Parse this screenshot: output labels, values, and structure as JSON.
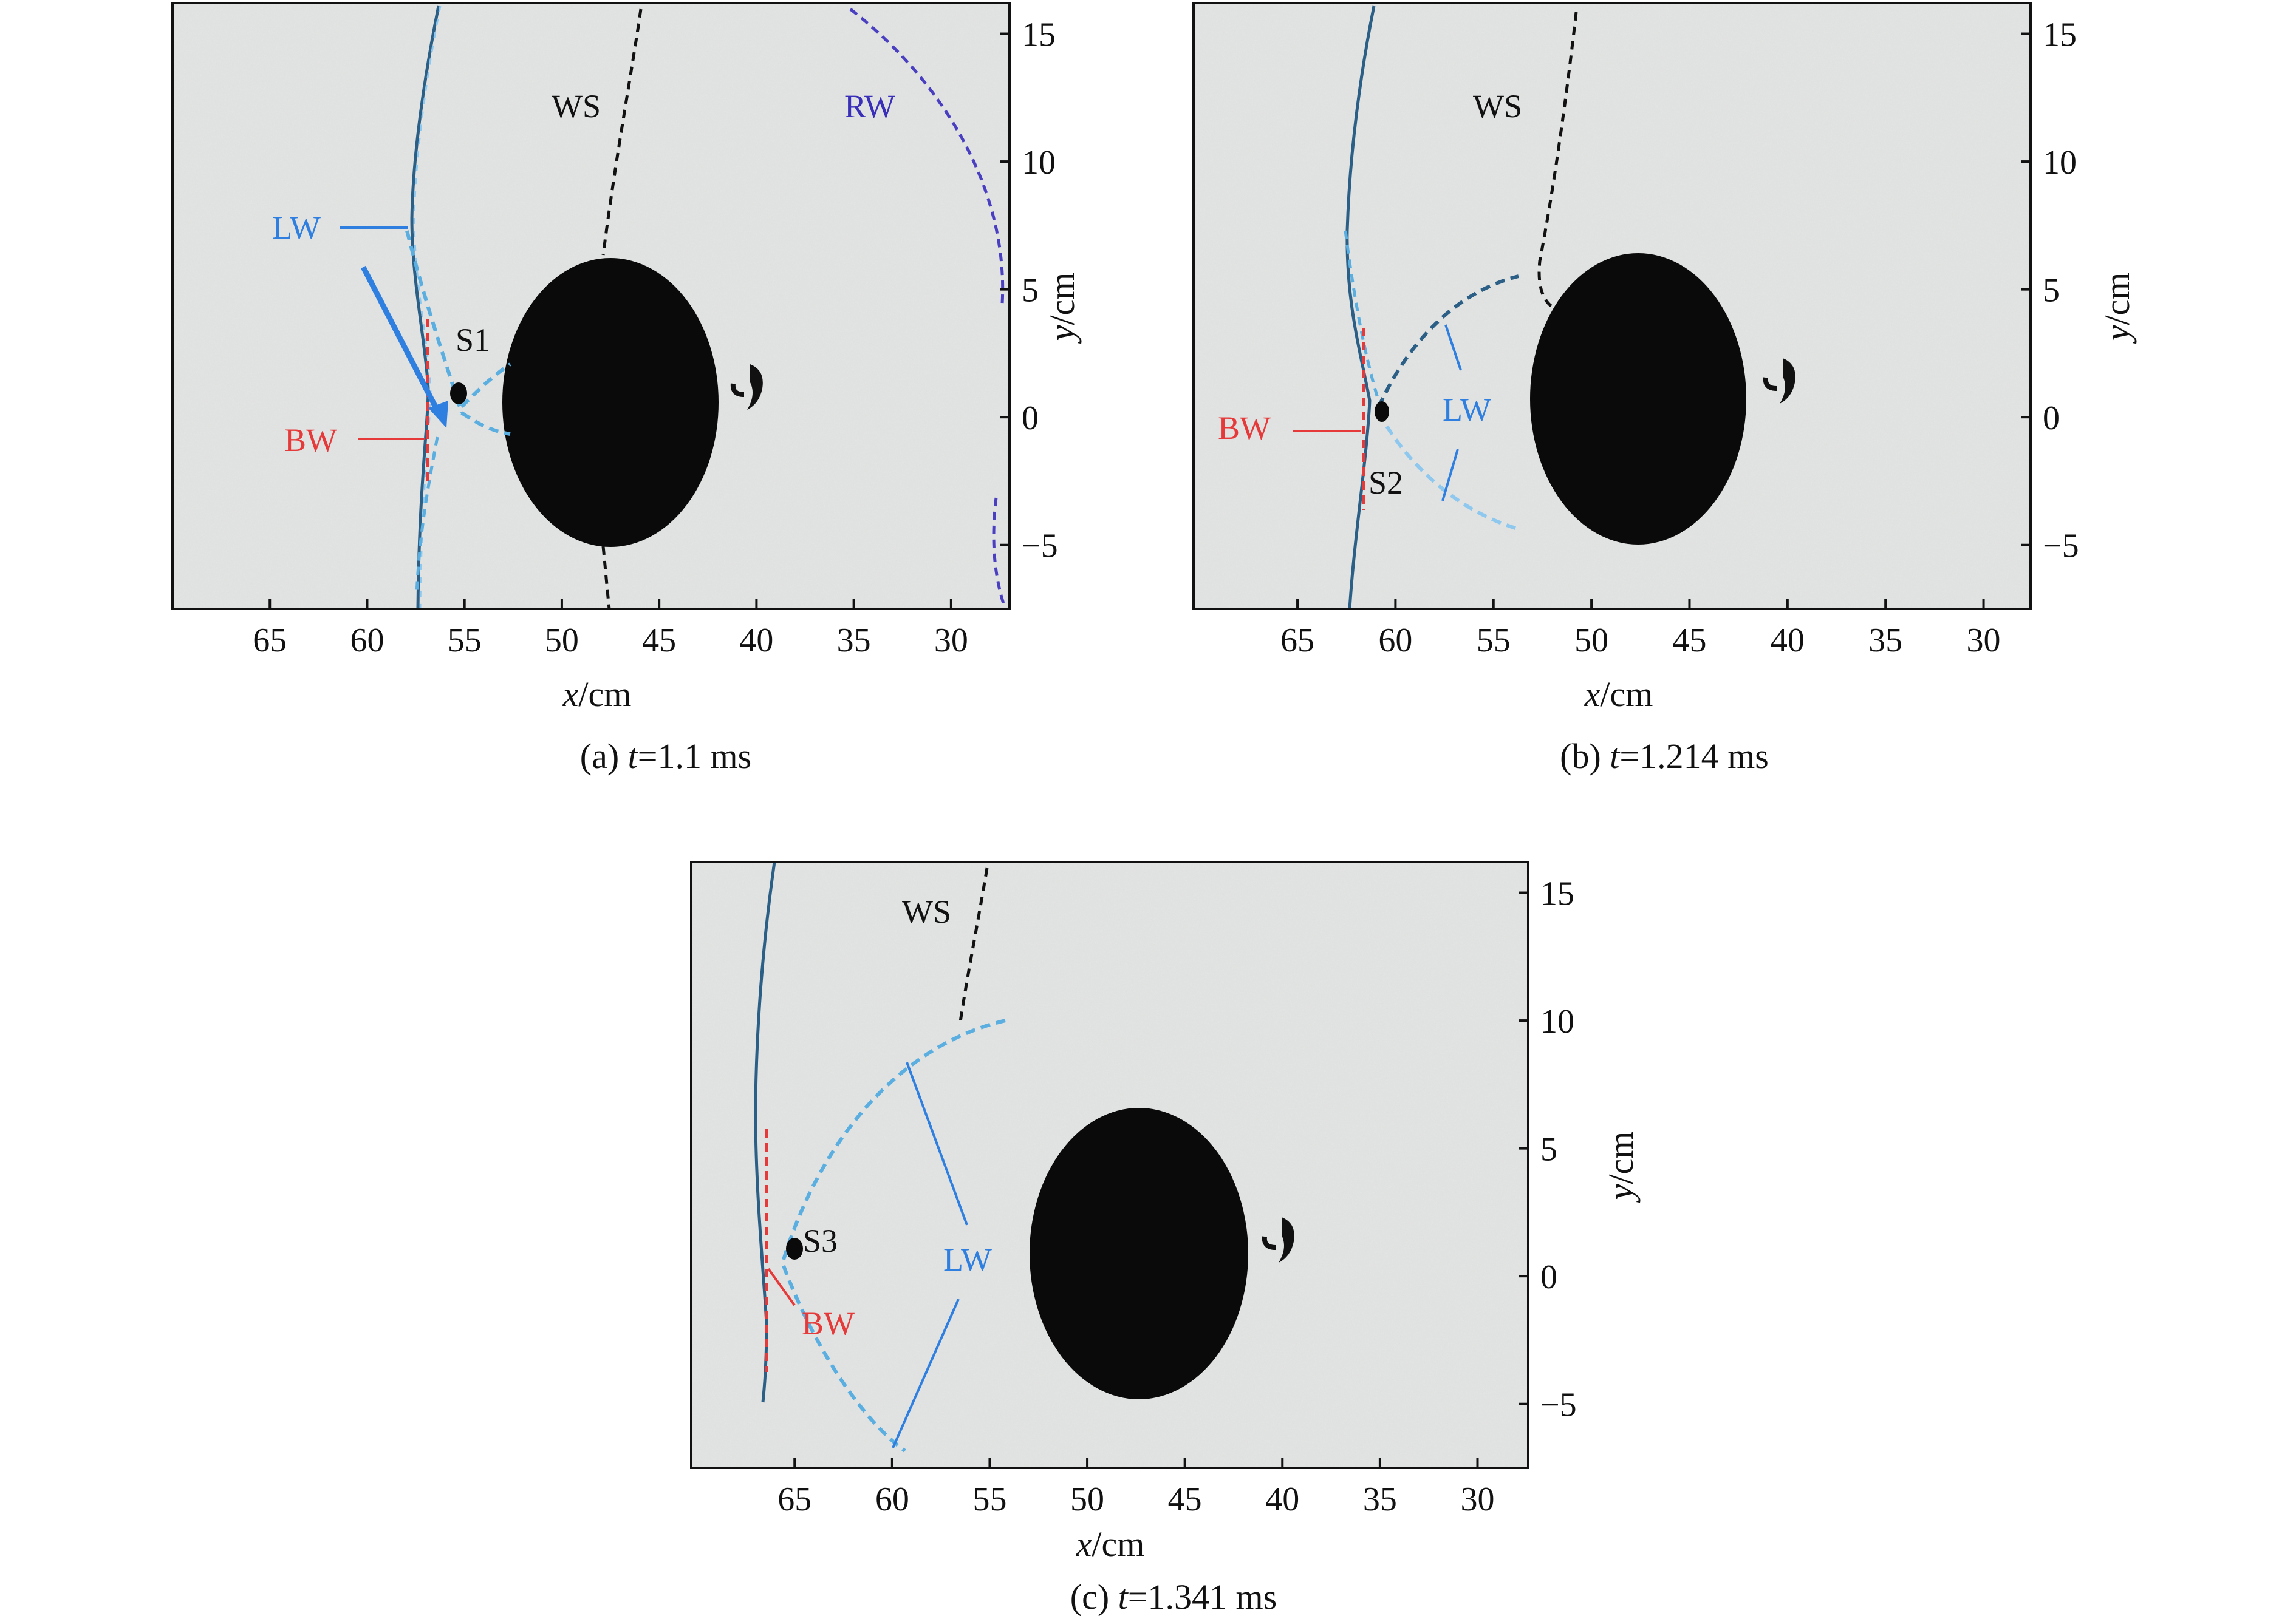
{
  "figure": {
    "panels": [
      {
        "id": "a",
        "caption_prefix": "(a) ",
        "caption_var": "t",
        "caption_value": "=1.1 ms",
        "xlabel_var": "x",
        "xlabel_unit": "/cm",
        "ylabel_var": "y",
        "ylabel_unit": "/cm",
        "x_ticks": [
          65,
          60,
          55,
          50,
          45,
          40,
          35,
          30
        ],
        "y_ticks": [
          15,
          10,
          5,
          0,
          -5
        ],
        "annotations": [
          {
            "text": "WS",
            "color": "#111111"
          },
          {
            "text": "RW",
            "color": "#3a2fb8"
          },
          {
            "text": "LW",
            "color": "#2f7fe0"
          },
          {
            "text": "S1",
            "color": "#111111"
          },
          {
            "text": "BW",
            "color": "#e63a3a"
          }
        ]
      },
      {
        "id": "b",
        "caption_prefix": "(b) ",
        "caption_var": "t",
        "caption_value": "=1.214 ms",
        "xlabel_var": "x",
        "xlabel_unit": "/cm",
        "ylabel_var": "y",
        "ylabel_unit": "/cm",
        "x_ticks": [
          65,
          60,
          55,
          50,
          45,
          40,
          35,
          30
        ],
        "y_ticks": [
          15,
          10,
          5,
          0,
          -5
        ],
        "annotations": [
          {
            "text": "WS",
            "color": "#111111"
          },
          {
            "text": "LW",
            "color": "#2f7fe0"
          },
          {
            "text": "BW",
            "color": "#e63a3a"
          },
          {
            "text": "S2",
            "color": "#111111"
          }
        ]
      },
      {
        "id": "c",
        "caption_prefix": "(c) ",
        "caption_var": "t",
        "caption_value": "=1.341 ms",
        "xlabel_var": "x",
        "xlabel_unit": "/cm",
        "ylabel_var": "y",
        "ylabel_unit": "/cm",
        "x_ticks": [
          65,
          60,
          55,
          50,
          45,
          40,
          35,
          30
        ],
        "y_ticks": [
          15,
          10,
          5,
          0,
          -5
        ],
        "annotations": [
          {
            "text": "WS",
            "color": "#111111"
          },
          {
            "text": "S3",
            "color": "#111111"
          },
          {
            "text": "LW",
            "color": "#2f7fe0"
          },
          {
            "text": "BW",
            "color": "#e63a3a"
          }
        ]
      }
    ],
    "colors": {
      "background": "#e4e6e5",
      "shock_blue": "#5aaee0",
      "shock_dark": "#2c5f86",
      "ws": "#111111",
      "rw": "#4a3fc0",
      "bw": "#e63a3a",
      "label_blue": "#2f7fe0"
    }
  }
}
